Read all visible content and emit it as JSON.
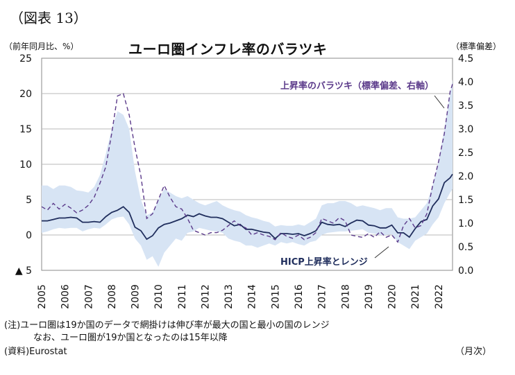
{
  "figure_label": "（図表 13）",
  "unit_left": "（前年同月比、%）",
  "unit_right": "（標準偏差）",
  "notes": {
    "line1": "(注)ユーロ圏は19か国のデータで網掛けは伸び率が最大の国と最小の国のレンジ",
    "line2": "なお、ユーロ圏が19か国となったのは15年以降",
    "source": "(資料)Eurostat",
    "period_unit": "（月次）"
  },
  "colors": {
    "line": "#1f2d5c",
    "dashed": "#5b3a8a",
    "band": "#d7e4f4",
    "grid": "#b8b8b8",
    "ann_dispersion": "#5b3a8a",
    "ann_hicp": "#1f2d5c"
  },
  "chart_data": {
    "type": "line",
    "title": "ユーロ圏インフレ率のバラツキ",
    "x_start": 2005,
    "x_end": 2022.6,
    "xlabels": [
      "2005",
      "2006",
      "2007",
      "2008",
      "2009",
      "2010",
      "2011",
      "2012",
      "2013",
      "2014",
      "2015",
      "2016",
      "2017",
      "2018",
      "2019",
      "2020",
      "2021",
      "2022"
    ],
    "y_left": {
      "min": -5,
      "max": 25,
      "ticks": [
        -5,
        0,
        5,
        10,
        15,
        20,
        25
      ],
      "tick_labels": [
        "▲ 5",
        "0",
        "5",
        "10",
        "15",
        "20",
        "25"
      ]
    },
    "y_right": {
      "min": 0,
      "max": 4.5,
      "ticks": [
        0,
        0.5,
        1,
        1.5,
        2,
        2.5,
        3,
        3.5,
        4,
        4.5
      ],
      "tick_labels": [
        "0.0",
        "0.5",
        "1.0",
        "1.5",
        "2.0",
        "2.5",
        "3.0",
        "3.5",
        "4.0",
        "4.5"
      ]
    },
    "series": [
      {
        "name": "HICP上昇率とレンジ",
        "axis": "left",
        "style": "solid",
        "points": [
          [
            2005.0,
            2.0
          ],
          [
            2005.25,
            2.0
          ],
          [
            2005.5,
            2.2
          ],
          [
            2005.75,
            2.4
          ],
          [
            2006.0,
            2.4
          ],
          [
            2006.25,
            2.5
          ],
          [
            2006.5,
            2.4
          ],
          [
            2006.75,
            1.8
          ],
          [
            2007.0,
            1.8
          ],
          [
            2007.25,
            1.9
          ],
          [
            2007.5,
            1.8
          ],
          [
            2007.75,
            2.6
          ],
          [
            2008.0,
            3.2
          ],
          [
            2008.25,
            3.5
          ],
          [
            2008.5,
            4.0
          ],
          [
            2008.75,
            3.2
          ],
          [
            2009.0,
            1.1
          ],
          [
            2009.25,
            0.6
          ],
          [
            2009.5,
            -0.6
          ],
          [
            2009.75,
            -0.1
          ],
          [
            2010.0,
            1.0
          ],
          [
            2010.25,
            1.5
          ],
          [
            2010.5,
            1.7
          ],
          [
            2010.75,
            2.0
          ],
          [
            2011.0,
            2.3
          ],
          [
            2011.25,
            2.8
          ],
          [
            2011.5,
            2.6
          ],
          [
            2011.75,
            3.0
          ],
          [
            2012.0,
            2.7
          ],
          [
            2012.25,
            2.5
          ],
          [
            2012.5,
            2.5
          ],
          [
            2012.75,
            2.3
          ],
          [
            2013.0,
            1.8
          ],
          [
            2013.25,
            1.3
          ],
          [
            2013.5,
            1.5
          ],
          [
            2013.75,
            0.8
          ],
          [
            2014.0,
            0.8
          ],
          [
            2014.25,
            0.6
          ],
          [
            2014.5,
            0.4
          ],
          [
            2014.75,
            0.3
          ],
          [
            2015.0,
            -0.5
          ],
          [
            2015.25,
            0.2
          ],
          [
            2015.5,
            0.2
          ],
          [
            2015.75,
            0.1
          ],
          [
            2016.0,
            0.2
          ],
          [
            2016.25,
            -0.1
          ],
          [
            2016.5,
            0.2
          ],
          [
            2016.75,
            0.6
          ],
          [
            2017.0,
            1.8
          ],
          [
            2017.25,
            1.5
          ],
          [
            2017.5,
            1.4
          ],
          [
            2017.75,
            1.5
          ],
          [
            2018.0,
            1.2
          ],
          [
            2018.25,
            1.7
          ],
          [
            2018.5,
            2.1
          ],
          [
            2018.75,
            2.0
          ],
          [
            2019.0,
            1.4
          ],
          [
            2019.25,
            1.3
          ],
          [
            2019.5,
            1.0
          ],
          [
            2019.75,
            1.0
          ],
          [
            2020.0,
            1.4
          ],
          [
            2020.25,
            0.3
          ],
          [
            2020.5,
            0.3
          ],
          [
            2020.75,
            -0.3
          ],
          [
            2021.0,
            0.9
          ],
          [
            2021.25,
            1.9
          ],
          [
            2021.5,
            2.2
          ],
          [
            2021.75,
            4.1
          ],
          [
            2022.0,
            5.1
          ],
          [
            2022.25,
            7.4
          ],
          [
            2022.5,
            8.1
          ],
          [
            2022.6,
            8.6
          ]
        ]
      },
      {
        "name": "上昇率のバラツキ（標準偏差、右軸）",
        "axis": "right",
        "style": "dashed",
        "points": [
          [
            2005.0,
            1.35
          ],
          [
            2005.25,
            1.28
          ],
          [
            2005.5,
            1.42
          ],
          [
            2005.75,
            1.3
          ],
          [
            2006.0,
            1.4
          ],
          [
            2006.25,
            1.32
          ],
          [
            2006.5,
            1.22
          ],
          [
            2006.75,
            1.28
          ],
          [
            2007.0,
            1.38
          ],
          [
            2007.25,
            1.55
          ],
          [
            2007.5,
            1.85
          ],
          [
            2007.75,
            2.2
          ],
          [
            2008.0,
            2.9
          ],
          [
            2008.25,
            3.7
          ],
          [
            2008.5,
            3.75
          ],
          [
            2008.75,
            3.3
          ],
          [
            2009.0,
            2.6
          ],
          [
            2009.25,
            2.0
          ],
          [
            2009.5,
            1.1
          ],
          [
            2009.75,
            1.2
          ],
          [
            2010.0,
            1.5
          ],
          [
            2010.25,
            1.8
          ],
          [
            2010.5,
            1.55
          ],
          [
            2010.75,
            1.35
          ],
          [
            2011.0,
            1.3
          ],
          [
            2011.25,
            1.1
          ],
          [
            2011.5,
            0.85
          ],
          [
            2011.75,
            0.8
          ],
          [
            2012.0,
            0.75
          ],
          [
            2012.25,
            0.8
          ],
          [
            2012.5,
            0.8
          ],
          [
            2012.75,
            0.85
          ],
          [
            2013.0,
            0.95
          ],
          [
            2013.25,
            1.05
          ],
          [
            2013.5,
            0.95
          ],
          [
            2013.75,
            0.9
          ],
          [
            2014.0,
            0.75
          ],
          [
            2014.25,
            0.8
          ],
          [
            2014.5,
            0.75
          ],
          [
            2014.75,
            0.72
          ],
          [
            2015.0,
            0.65
          ],
          [
            2015.25,
            0.8
          ],
          [
            2015.5,
            0.72
          ],
          [
            2015.75,
            0.68
          ],
          [
            2016.0,
            0.75
          ],
          [
            2016.25,
            0.65
          ],
          [
            2016.5,
            0.7
          ],
          [
            2016.75,
            0.8
          ],
          [
            2017.0,
            1.1
          ],
          [
            2017.25,
            1.05
          ],
          [
            2017.5,
            1.0
          ],
          [
            2017.75,
            1.12
          ],
          [
            2018.0,
            1.05
          ],
          [
            2018.25,
            0.75
          ],
          [
            2018.5,
            0.72
          ],
          [
            2018.75,
            0.7
          ],
          [
            2019.0,
            0.78
          ],
          [
            2019.25,
            0.7
          ],
          [
            2019.5,
            0.82
          ],
          [
            2019.75,
            0.7
          ],
          [
            2020.0,
            0.75
          ],
          [
            2020.25,
            0.6
          ],
          [
            2020.5,
            0.95
          ],
          [
            2020.75,
            1.1
          ],
          [
            2021.0,
            0.9
          ],
          [
            2021.25,
            0.95
          ],
          [
            2021.5,
            1.2
          ],
          [
            2021.75,
            1.8
          ],
          [
            2022.0,
            2.3
          ],
          [
            2022.25,
            2.9
          ],
          [
            2022.5,
            3.8
          ],
          [
            2022.6,
            3.95
          ]
        ]
      }
    ],
    "range_band": {
      "axis": "left",
      "upper": [
        [
          2005.0,
          7.0
        ],
        [
          2005.25,
          7.0
        ],
        [
          2005.5,
          6.5
        ],
        [
          2005.75,
          7.0
        ],
        [
          2006.0,
          7.0
        ],
        [
          2006.25,
          6.8
        ],
        [
          2006.5,
          6.3
        ],
        [
          2006.75,
          6.2
        ],
        [
          2007.0,
          6.0
        ],
        [
          2007.25,
          6.8
        ],
        [
          2007.5,
          8.5
        ],
        [
          2007.75,
          11.5
        ],
        [
          2008.0,
          15.0
        ],
        [
          2008.25,
          17.5
        ],
        [
          2008.5,
          17.0
        ],
        [
          2008.75,
          15.0
        ],
        [
          2009.0,
          9.0
        ],
        [
          2009.25,
          5.0
        ],
        [
          2009.5,
          2.8
        ],
        [
          2009.75,
          3.2
        ],
        [
          2010.0,
          5.0
        ],
        [
          2010.25,
          6.5
        ],
        [
          2010.5,
          6.0
        ],
        [
          2010.75,
          5.5
        ],
        [
          2011.0,
          5.2
        ],
        [
          2011.25,
          5.5
        ],
        [
          2011.5,
          5.0
        ],
        [
          2011.75,
          4.5
        ],
        [
          2012.0,
          4.2
        ],
        [
          2012.25,
          4.5
        ],
        [
          2012.5,
          4.8
        ],
        [
          2012.75,
          4.2
        ],
        [
          2013.0,
          3.8
        ],
        [
          2013.25,
          3.5
        ],
        [
          2013.5,
          3.3
        ],
        [
          2013.75,
          2.8
        ],
        [
          2014.0,
          2.5
        ],
        [
          2014.25,
          2.3
        ],
        [
          2014.5,
          2.0
        ],
        [
          2014.75,
          1.8
        ],
        [
          2015.0,
          1.2
        ],
        [
          2015.25,
          1.4
        ],
        [
          2015.5,
          1.3
        ],
        [
          2015.75,
          1.3
        ],
        [
          2016.0,
          1.5
        ],
        [
          2016.25,
          1.3
        ],
        [
          2016.5,
          1.8
        ],
        [
          2016.75,
          2.3
        ],
        [
          2017.0,
          4.2
        ],
        [
          2017.25,
          4.5
        ],
        [
          2017.5,
          4.5
        ],
        [
          2017.75,
          4.8
        ],
        [
          2018.0,
          4.8
        ],
        [
          2018.25,
          4.5
        ],
        [
          2018.5,
          4.0
        ],
        [
          2018.75,
          4.2
        ],
        [
          2019.0,
          4.0
        ],
        [
          2019.25,
          3.8
        ],
        [
          2019.5,
          3.5
        ],
        [
          2019.75,
          3.8
        ],
        [
          2020.0,
          3.8
        ],
        [
          2020.25,
          2.5
        ],
        [
          2020.5,
          2.3
        ],
        [
          2020.75,
          2.3
        ],
        [
          2021.0,
          2.5
        ],
        [
          2021.25,
          3.5
        ],
        [
          2021.5,
          4.5
        ],
        [
          2021.75,
          7.0
        ],
        [
          2022.0,
          10.5
        ],
        [
          2022.25,
          15.0
        ],
        [
          2022.5,
          20.0
        ],
        [
          2022.6,
          22.0
        ]
      ],
      "lower": [
        [
          2005.0,
          0.3
        ],
        [
          2005.25,
          0.5
        ],
        [
          2005.5,
          0.8
        ],
        [
          2005.75,
          1.0
        ],
        [
          2006.0,
          0.9
        ],
        [
          2006.25,
          1.0
        ],
        [
          2006.5,
          1.0
        ],
        [
          2006.75,
          0.5
        ],
        [
          2007.0,
          0.8
        ],
        [
          2007.25,
          1.0
        ],
        [
          2007.5,
          0.9
        ],
        [
          2007.75,
          1.5
        ],
        [
          2008.0,
          2.2
        ],
        [
          2008.25,
          2.5
        ],
        [
          2008.5,
          2.6
        ],
        [
          2008.75,
          1.5
        ],
        [
          2009.0,
          -0.5
        ],
        [
          2009.25,
          -1.5
        ],
        [
          2009.5,
          -3.5
        ],
        [
          2009.75,
          -3.0
        ],
        [
          2010.0,
          -4.5
        ],
        [
          2010.25,
          -2.5
        ],
        [
          2010.5,
          -1.5
        ],
        [
          2010.75,
          -0.5
        ],
        [
          2011.0,
          -0.8
        ],
        [
          2011.25,
          0.3
        ],
        [
          2011.5,
          0.5
        ],
        [
          2011.75,
          1.0
        ],
        [
          2012.0,
          0.8
        ],
        [
          2012.25,
          0.6
        ],
        [
          2012.5,
          0.5
        ],
        [
          2012.75,
          0.3
        ],
        [
          2013.0,
          -0.5
        ],
        [
          2013.25,
          -0.8
        ],
        [
          2013.5,
          -1.0
        ],
        [
          2013.75,
          -1.5
        ],
        [
          2014.0,
          -1.5
        ],
        [
          2014.25,
          -1.8
        ],
        [
          2014.5,
          -1.5
        ],
        [
          2014.75,
          -1.2
        ],
        [
          2015.0,
          -1.5
        ],
        [
          2015.25,
          -1.0
        ],
        [
          2015.5,
          -1.2
        ],
        [
          2015.75,
          -1.0
        ],
        [
          2016.0,
          -1.3
        ],
        [
          2016.25,
          -1.5
        ],
        [
          2016.5,
          -1.0
        ],
        [
          2016.75,
          -0.8
        ],
        [
          2017.0,
          0.0
        ],
        [
          2017.25,
          0.3
        ],
        [
          2017.5,
          0.4
        ],
        [
          2017.75,
          0.5
        ],
        [
          2018.0,
          0.5
        ],
        [
          2018.25,
          0.6
        ],
        [
          2018.5,
          0.7
        ],
        [
          2018.75,
          0.8
        ],
        [
          2019.0,
          0.3
        ],
        [
          2019.25,
          0.2
        ],
        [
          2019.5,
          0.0
        ],
        [
          2019.75,
          0.0
        ],
        [
          2020.0,
          0.1
        ],
        [
          2020.25,
          -1.0
        ],
        [
          2020.5,
          -1.5
        ],
        [
          2020.75,
          -2.0
        ],
        [
          2021.0,
          -0.8
        ],
        [
          2021.25,
          -0.3
        ],
        [
          2021.5,
          0.2
        ],
        [
          2021.75,
          1.5
        ],
        [
          2022.0,
          2.5
        ],
        [
          2022.25,
          4.5
        ],
        [
          2022.5,
          6.0
        ],
        [
          2022.6,
          6.5
        ]
      ]
    },
    "annotations": {
      "dispersion": "上昇率のバラツキ（標準偏差、右軸）",
      "hicp": "HICP上昇率とレンジ"
    }
  }
}
